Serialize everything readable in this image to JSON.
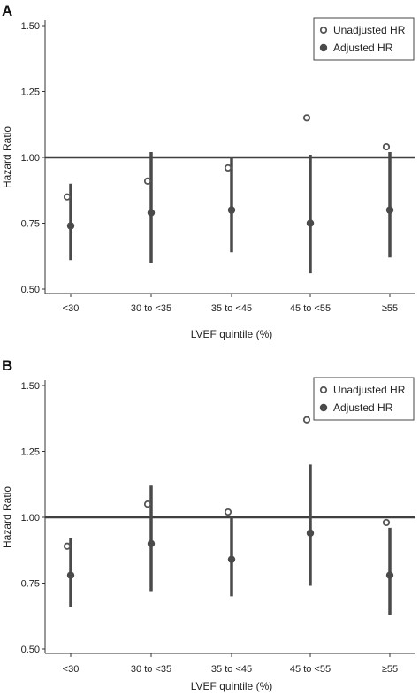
{
  "chart_data": [
    {
      "panel_label": "A",
      "type": "scatter",
      "categories": [
        "<30",
        "30 to <35",
        "35 to <45",
        "45 to <55",
        "≥55"
      ],
      "series": [
        {
          "name": "Unadjusted HR",
          "values": [
            0.85,
            0.91,
            0.96,
            1.15,
            1.04
          ]
        },
        {
          "name": "Adjusted HR",
          "values": [
            0.74,
            0.79,
            0.8,
            0.75,
            0.8
          ],
          "ci_lower": [
            0.61,
            0.6,
            0.64,
            0.56,
            0.62
          ],
          "ci_upper": [
            0.9,
            1.02,
            1.0,
            1.01,
            1.02
          ]
        }
      ],
      "reference_line": 1.0,
      "xlabel": "LVEF quintile (%)",
      "ylabel": "Hazard Ratio",
      "yticks": [
        "0.50",
        "0.75",
        "1.00",
        "1.25",
        "1.50"
      ],
      "ylim": [
        0.5,
        1.5
      ],
      "legend_position": "top-right",
      "grid": false
    },
    {
      "panel_label": "B",
      "type": "scatter",
      "categories": [
        "<30",
        "30 to <35",
        "35 to <45",
        "45 to <55",
        "≥55"
      ],
      "series": [
        {
          "name": "Unadjusted HR",
          "values": [
            0.89,
            1.05,
            1.02,
            1.37,
            0.98
          ]
        },
        {
          "name": "Adjusted HR",
          "values": [
            0.78,
            0.9,
            0.84,
            0.94,
            0.78
          ],
          "ci_lower": [
            0.66,
            0.72,
            0.7,
            0.74,
            0.63
          ],
          "ci_upper": [
            0.92,
            1.12,
            1.0,
            1.2,
            0.96
          ]
        }
      ],
      "reference_line": 1.0,
      "xlabel": "LVEF quintile (%)",
      "ylabel": "Hazard Ratio",
      "yticks": [
        "0.50",
        "0.75",
        "1.00",
        "1.25",
        "1.50"
      ],
      "ylim": [
        0.5,
        1.5
      ],
      "legend_position": "top-right",
      "grid": false
    }
  ],
  "colors": {
    "unadjusted": "#555555",
    "adjusted": "#4a4a4a",
    "reference_line": "#3f3f3f",
    "axis": "#333333"
  }
}
